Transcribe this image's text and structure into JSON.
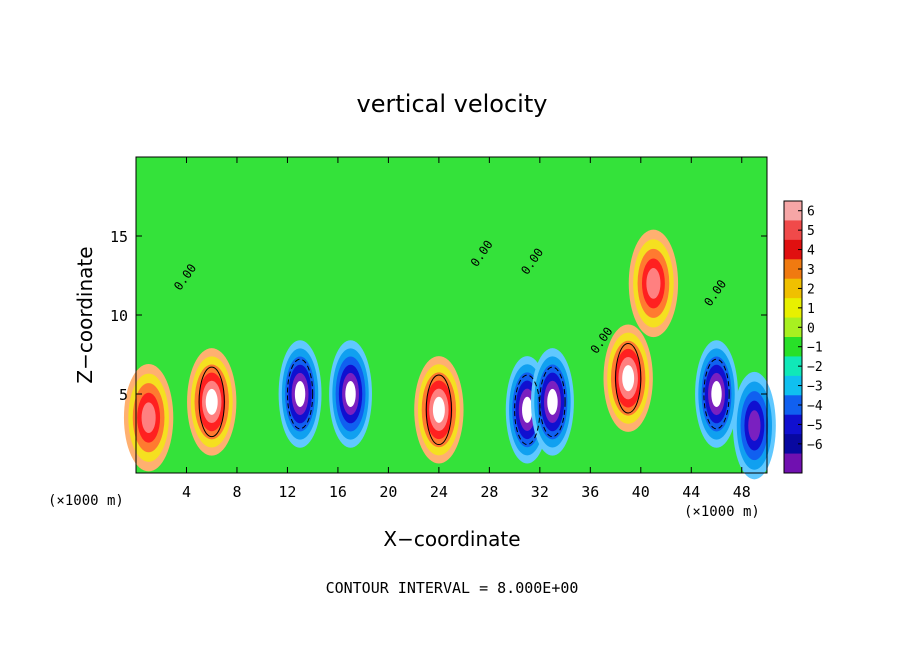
{
  "chart_data": {
    "type": "heatmap",
    "title": "vertical velocity",
    "xlabel": "X−coordinate",
    "ylabel": "Z−coordinate",
    "x_unit_label": "(×1000 m)",
    "y_unit_label": "(×1000 m)",
    "xlim": [
      0,
      50
    ],
    "ylim": [
      0,
      20
    ],
    "x_ticks": [
      4,
      8,
      12,
      16,
      20,
      24,
      28,
      32,
      36,
      40,
      44,
      48
    ],
    "y_ticks": [
      5,
      10,
      15
    ],
    "colorbar": {
      "ticks": [
        6,
        5,
        4,
        3,
        2,
        1,
        0,
        -1,
        -2,
        -3,
        -4,
        -5,
        -6
      ],
      "tick_labels": [
        "6",
        "5",
        "4",
        "3",
        "2",
        "1",
        "0",
        "−1",
        "−2",
        "−3",
        "−4",
        "−5",
        "−6"
      ],
      "colors": [
        "#f6a6a6",
        "#f04a4a",
        "#e01010",
        "#f07a10",
        "#f0c000",
        "#e8f000",
        "#a8f020",
        "#28e028",
        "#10e8b8",
        "#10c0f0",
        "#1060f0",
        "#1010d0",
        "#0808a0",
        "#7010b0"
      ]
    },
    "contour_label": "0.00",
    "annotation": "CONTOUR INTERVAL = 8.000E+00",
    "features": [
      {
        "x": 1,
        "z": 3.5,
        "w": 5.0
      },
      {
        "x": 6,
        "z": 4.5,
        "w": 7.0
      },
      {
        "x": 13,
        "z": 5.0,
        "w": -6.5
      },
      {
        "x": 17,
        "z": 5.0,
        "w": -5.5
      },
      {
        "x": 24,
        "z": 4.0,
        "w": 6.5
      },
      {
        "x": 31,
        "z": 4.0,
        "w": -6.0
      },
      {
        "x": 33,
        "z": 4.5,
        "w": -6.0
      },
      {
        "x": 39,
        "z": 6.0,
        "w": 7.0
      },
      {
        "x": 41,
        "z": 12.0,
        "w": 4.5
      },
      {
        "x": 46,
        "z": 5.0,
        "w": -6.0
      },
      {
        "x": 49,
        "z": 3.0,
        "w": -5.0
      }
    ]
  }
}
